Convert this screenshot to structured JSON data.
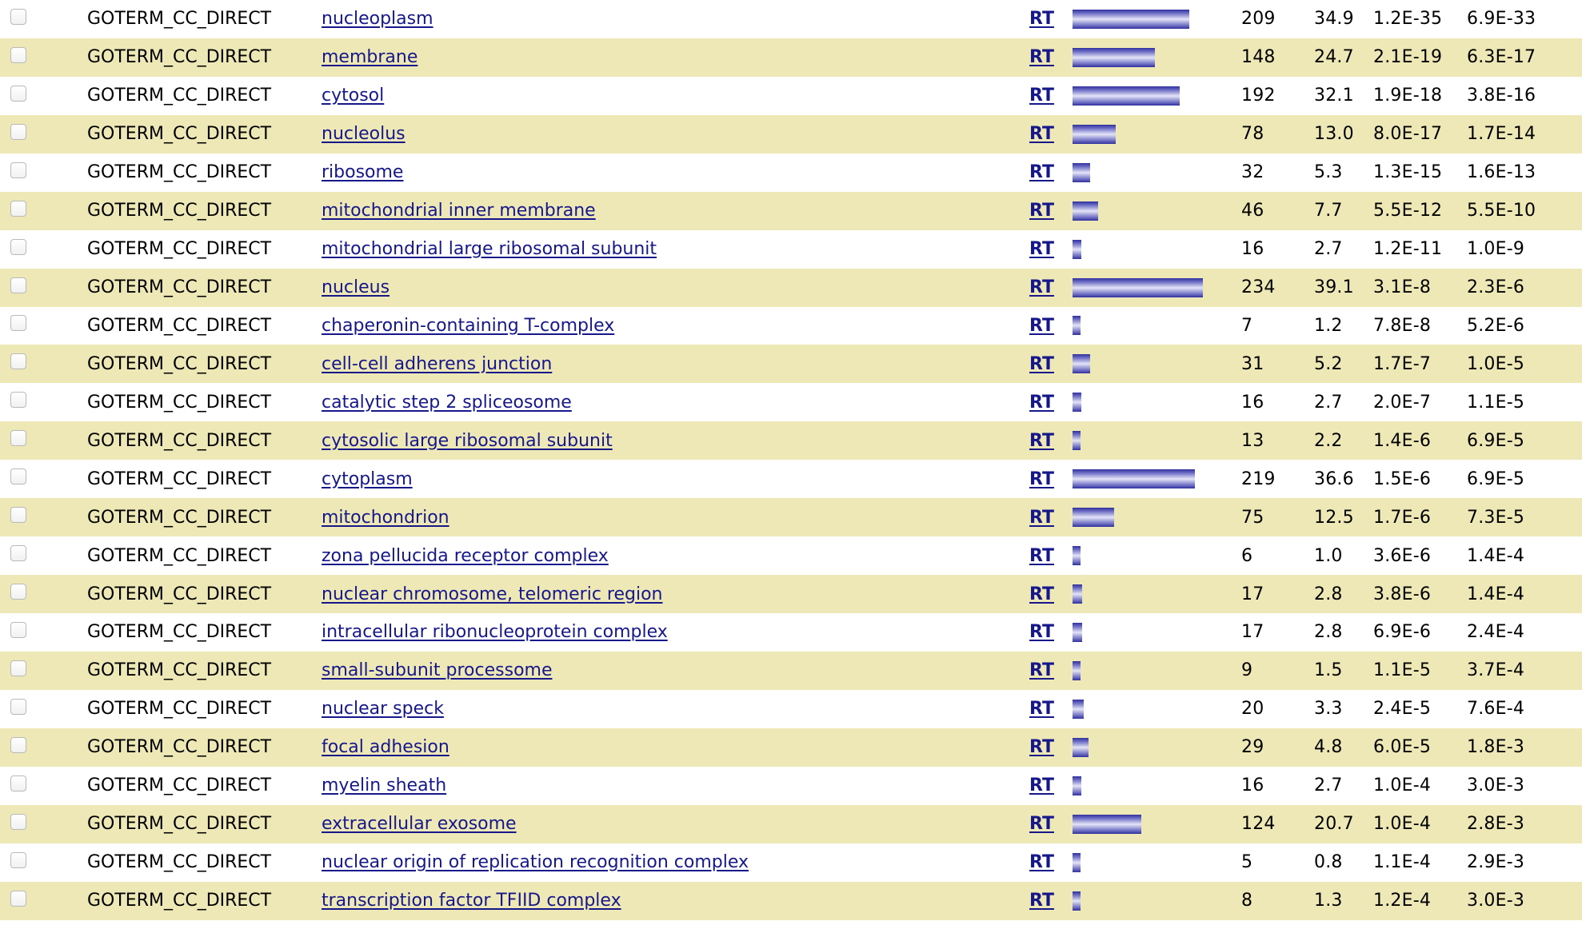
{
  "table": {
    "rows": [
      {
        "category": "GOTERM_CC_DIRECT",
        "term": "nucleoplasm",
        "rt": "RT",
        "count": "209",
        "percent": "34.9",
        "pvalue": "1.2E-35",
        "benjamini": "6.9E-33"
      },
      {
        "category": "GOTERM_CC_DIRECT",
        "term": "membrane",
        "rt": "RT",
        "count": "148",
        "percent": "24.7",
        "pvalue": "2.1E-19",
        "benjamini": "6.3E-17"
      },
      {
        "category": "GOTERM_CC_DIRECT",
        "term": "cytosol",
        "rt": "RT",
        "count": "192",
        "percent": "32.1",
        "pvalue": "1.9E-18",
        "benjamini": "3.8E-16"
      },
      {
        "category": "GOTERM_CC_DIRECT",
        "term": "nucleolus",
        "rt": "RT",
        "count": "78",
        "percent": "13.0",
        "pvalue": "8.0E-17",
        "benjamini": "1.7E-14"
      },
      {
        "category": "GOTERM_CC_DIRECT",
        "term": "ribosome",
        "rt": "RT",
        "count": "32",
        "percent": "5.3",
        "pvalue": "1.3E-15",
        "benjamini": "1.6E-13"
      },
      {
        "category": "GOTERM_CC_DIRECT",
        "term": "mitochondrial inner membrane",
        "rt": "RT",
        "count": "46",
        "percent": "7.7",
        "pvalue": "5.5E-12",
        "benjamini": "5.5E-10"
      },
      {
        "category": "GOTERM_CC_DIRECT",
        "term": "mitochondrial large ribosomal subunit",
        "rt": "RT",
        "count": "16",
        "percent": "2.7",
        "pvalue": "1.2E-11",
        "benjamini": "1.0E-9"
      },
      {
        "category": "GOTERM_CC_DIRECT",
        "term": "nucleus",
        "rt": "RT",
        "count": "234",
        "percent": "39.1",
        "pvalue": "3.1E-8",
        "benjamini": "2.3E-6"
      },
      {
        "category": "GOTERM_CC_DIRECT",
        "term": "chaperonin-containing T-complex",
        "rt": "RT",
        "count": "7",
        "percent": "1.2",
        "pvalue": "7.8E-8",
        "benjamini": "5.2E-6"
      },
      {
        "category": "GOTERM_CC_DIRECT",
        "term": "cell-cell adherens junction",
        "rt": "RT",
        "count": "31",
        "percent": "5.2",
        "pvalue": "1.7E-7",
        "benjamini": "1.0E-5"
      },
      {
        "category": "GOTERM_CC_DIRECT",
        "term": "catalytic step 2 spliceosome",
        "rt": "RT",
        "count": "16",
        "percent": "2.7",
        "pvalue": "2.0E-7",
        "benjamini": "1.1E-5"
      },
      {
        "category": "GOTERM_CC_DIRECT",
        "term": "cytosolic large ribosomal subunit",
        "rt": "RT",
        "count": "13",
        "percent": "2.2",
        "pvalue": "1.4E-6",
        "benjamini": "6.9E-5"
      },
      {
        "category": "GOTERM_CC_DIRECT",
        "term": "cytoplasm",
        "rt": "RT",
        "count": "219",
        "percent": "36.6",
        "pvalue": "1.5E-6",
        "benjamini": "6.9E-5"
      },
      {
        "category": "GOTERM_CC_DIRECT",
        "term": "mitochondrion",
        "rt": "RT",
        "count": "75",
        "percent": "12.5",
        "pvalue": "1.7E-6",
        "benjamini": "7.3E-5"
      },
      {
        "category": "GOTERM_CC_DIRECT",
        "term": "zona pellucida receptor complex",
        "rt": "RT",
        "count": "6",
        "percent": "1.0",
        "pvalue": "3.6E-6",
        "benjamini": "1.4E-4"
      },
      {
        "category": "GOTERM_CC_DIRECT",
        "term": "nuclear chromosome, telomeric region",
        "rt": "RT",
        "count": "17",
        "percent": "2.8",
        "pvalue": "3.8E-6",
        "benjamini": "1.4E-4"
      },
      {
        "category": "GOTERM_CC_DIRECT",
        "term": "intracellular ribonucleoprotein complex",
        "rt": "RT",
        "count": "17",
        "percent": "2.8",
        "pvalue": "6.9E-6",
        "benjamini": "2.4E-4"
      },
      {
        "category": "GOTERM_CC_DIRECT",
        "term": "small-subunit processome",
        "rt": "RT",
        "count": "9",
        "percent": "1.5",
        "pvalue": "1.1E-5",
        "benjamini": "3.7E-4"
      },
      {
        "category": "GOTERM_CC_DIRECT",
        "term": "nuclear speck",
        "rt": "RT",
        "count": "20",
        "percent": "3.3",
        "pvalue": "2.4E-5",
        "benjamini": "7.6E-4"
      },
      {
        "category": "GOTERM_CC_DIRECT",
        "term": "focal adhesion",
        "rt": "RT",
        "count": "29",
        "percent": "4.8",
        "pvalue": "6.0E-5",
        "benjamini": "1.8E-3"
      },
      {
        "category": "GOTERM_CC_DIRECT",
        "term": "myelin sheath",
        "rt": "RT",
        "count": "16",
        "percent": "2.7",
        "pvalue": "1.0E-4",
        "benjamini": "3.0E-3"
      },
      {
        "category": "GOTERM_CC_DIRECT",
        "term": "extracellular exosome",
        "rt": "RT",
        "count": "124",
        "percent": "20.7",
        "pvalue": "1.0E-4",
        "benjamini": "2.8E-3"
      },
      {
        "category": "GOTERM_CC_DIRECT",
        "term": "nuclear origin of replication recognition complex",
        "rt": "RT",
        "count": "5",
        "percent": "0.8",
        "pvalue": "1.1E-4",
        "benjamini": "2.9E-3"
      },
      {
        "category": "GOTERM_CC_DIRECT",
        "term": "transcription factor TFIID complex",
        "rt": "RT",
        "count": "8",
        "percent": "1.3",
        "pvalue": "1.2E-4",
        "benjamini": "3.0E-3"
      }
    ]
  },
  "colors": {
    "row_alt_bg": "#eee8b7",
    "link": "#16178a",
    "bar": "#3a3aa8"
  },
  "icons": {
    "checkbox": "checkbox-icon"
  }
}
